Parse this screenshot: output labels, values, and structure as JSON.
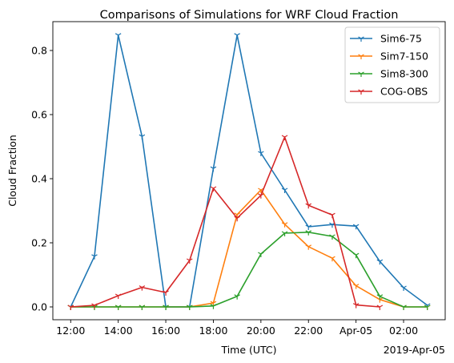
{
  "chart_data": {
    "type": "line",
    "title": "Comparisons of Simulations for WRF Cloud Fraction",
    "xlabel": "Time (UTC)",
    "ylabel": "Cloud Fraction",
    "x": [
      "2019-04-04 12:00",
      "2019-04-04 13:00",
      "2019-04-04 14:00",
      "2019-04-04 15:00",
      "2019-04-04 16:00",
      "2019-04-04 17:00",
      "2019-04-04 18:00",
      "2019-04-04 19:00",
      "2019-04-04 20:00",
      "2019-04-04 21:00",
      "2019-04-04 22:00",
      "2019-04-04 23:00",
      "2019-04-05 00:00",
      "2019-04-05 01:00",
      "2019-04-05 02:00",
      "2019-04-05 03:00"
    ],
    "x_tick_labels": [
      "12:00",
      "14:00",
      "16:00",
      "18:00",
      "20:00",
      "22:00",
      "Apr-05",
      "02:00"
    ],
    "x_offset_label": "2019-Apr-05",
    "xlim": [
      "2019-04-04 11:15",
      "2019-04-05 03:45"
    ],
    "ylim": [
      -0.04,
      0.89
    ],
    "y_ticks": [
      0.0,
      0.2,
      0.4,
      0.6,
      0.8
    ],
    "y_tick_labels": [
      "0.0",
      "0.2",
      "0.4",
      "0.6",
      "0.8"
    ],
    "legend_position": "top-right",
    "grid": false,
    "series": [
      {
        "name": "Sim6-75",
        "color": "#1f77b4",
        "values": [
          0.0,
          0.158,
          0.848,
          0.532,
          0.0,
          0.0,
          0.432,
          0.848,
          0.48,
          0.365,
          0.25,
          0.257,
          0.252,
          0.142,
          0.06,
          0.005
        ]
      },
      {
        "name": "Sim7-150",
        "color": "#ff7f0e",
        "values": [
          0.0,
          0.0,
          0.0,
          0.0,
          0.0,
          0.0,
          0.012,
          0.288,
          0.365,
          0.258,
          0.188,
          0.152,
          0.066,
          0.023,
          0.0,
          0.0
        ]
      },
      {
        "name": "Sim8-300",
        "color": "#2ca02c",
        "values": [
          0.0,
          0.0,
          0.0,
          0.0,
          0.0,
          0.0,
          0.003,
          0.033,
          0.165,
          0.23,
          0.233,
          0.22,
          0.162,
          0.033,
          0.0,
          0.0
        ]
      },
      {
        "name": "COG-OBS",
        "color": "#d62728",
        "values": [
          0.0,
          0.005,
          0.035,
          0.061,
          0.045,
          0.145,
          0.37,
          0.277,
          0.348,
          0.53,
          0.317,
          0.287,
          0.006,
          0.0,
          null,
          null
        ]
      }
    ]
  }
}
